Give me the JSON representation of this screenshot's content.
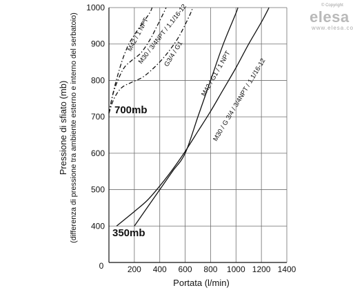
{
  "logo": {
    "copyright": "© Copyright",
    "brand": "elesa",
    "url": "www.elesa.com"
  },
  "chart_data": {
    "type": "line",
    "xlabel": "Portata (l/min)",
    "ylabel": "Pressione di sfiato (mb)",
    "ylabel_sub": "(differenza di pressione tra ambiente esterno e interno del serbatoio)",
    "xlim": [
      0,
      1400
    ],
    "ylim": [
      300,
      1000
    ],
    "x_ticks": [
      0,
      200,
      400,
      600,
      800,
      1000,
      1200,
      1400
    ],
    "y_ticks": [
      400,
      500,
      600,
      700,
      800,
      900,
      1000
    ],
    "y_origin_label": "0",
    "x_tick_labels": [
      "200",
      "400",
      "600",
      "800",
      "1000",
      "1200",
      "1400"
    ],
    "grid": true,
    "annotations": [
      "700mb",
      "350mb"
    ],
    "series": [
      {
        "name": "M42 / 1 NPT",
        "group": "700mb",
        "style": "dashdot",
        "points": [
          [
            0,
            710
          ],
          [
            20,
            745
          ],
          [
            50,
            790
          ],
          [
            100,
            850
          ],
          [
            150,
            895
          ],
          [
            200,
            925
          ],
          [
            260,
            955
          ],
          [
            320,
            985
          ],
          [
            340,
            1000
          ]
        ]
      },
      {
        "name": "M30 / 3/4NPT / 1.1/16-12",
        "group": "700mb",
        "style": "dashdot",
        "points": [
          [
            0,
            710
          ],
          [
            30,
            760
          ],
          [
            70,
            800
          ],
          [
            120,
            835
          ],
          [
            180,
            855
          ],
          [
            250,
            875
          ],
          [
            320,
            910
          ],
          [
            380,
            950
          ],
          [
            430,
            985
          ],
          [
            450,
            1000
          ]
        ]
      },
      {
        "name": "G3/4 / G1",
        "group": "700mb",
        "style": "dashdot",
        "points": [
          [
            0,
            710
          ],
          [
            40,
            750
          ],
          [
            100,
            780
          ],
          [
            180,
            795
          ],
          [
            270,
            810
          ],
          [
            370,
            840
          ],
          [
            460,
            875
          ],
          [
            550,
            920
          ],
          [
            630,
            975
          ],
          [
            660,
            1000
          ]
        ]
      },
      {
        "name": "M42 / G1 / 1 NPT",
        "group": "350mb",
        "style": "solid",
        "points": [
          [
            200,
            400
          ],
          [
            300,
            450
          ],
          [
            400,
            500
          ],
          [
            500,
            550
          ],
          [
            600,
            600
          ],
          [
            700,
            700
          ],
          [
            800,
            800
          ],
          [
            900,
            900
          ],
          [
            1000,
            985
          ],
          [
            1015,
            1000
          ]
        ]
      },
      {
        "name": "M30 / G 3/4 / 3/4NPT / 1.1/16-12",
        "group": "350mb",
        "style": "solid",
        "points": [
          [
            60,
            400
          ],
          [
            200,
            440
          ],
          [
            300,
            470
          ],
          [
            400,
            510
          ],
          [
            500,
            555
          ],
          [
            600,
            605
          ],
          [
            700,
            660
          ],
          [
            800,
            715
          ],
          [
            900,
            775
          ],
          [
            1000,
            835
          ],
          [
            1100,
            900
          ],
          [
            1200,
            960
          ],
          [
            1260,
            1000
          ]
        ]
      }
    ]
  }
}
